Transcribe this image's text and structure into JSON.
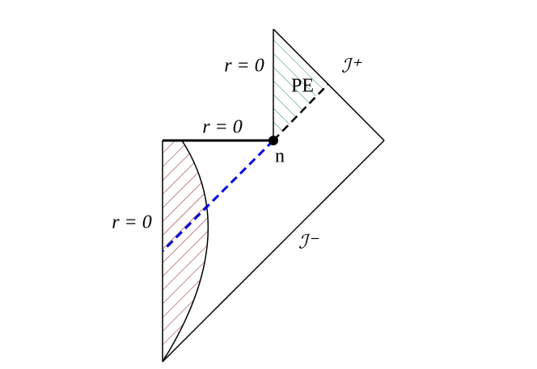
{
  "labels": [
    "r = 0",
    "r = 0",
    "r = 0",
    "PE",
    "n",
    "ℐ⁺",
    "ℐ⁻"
  ]
}
